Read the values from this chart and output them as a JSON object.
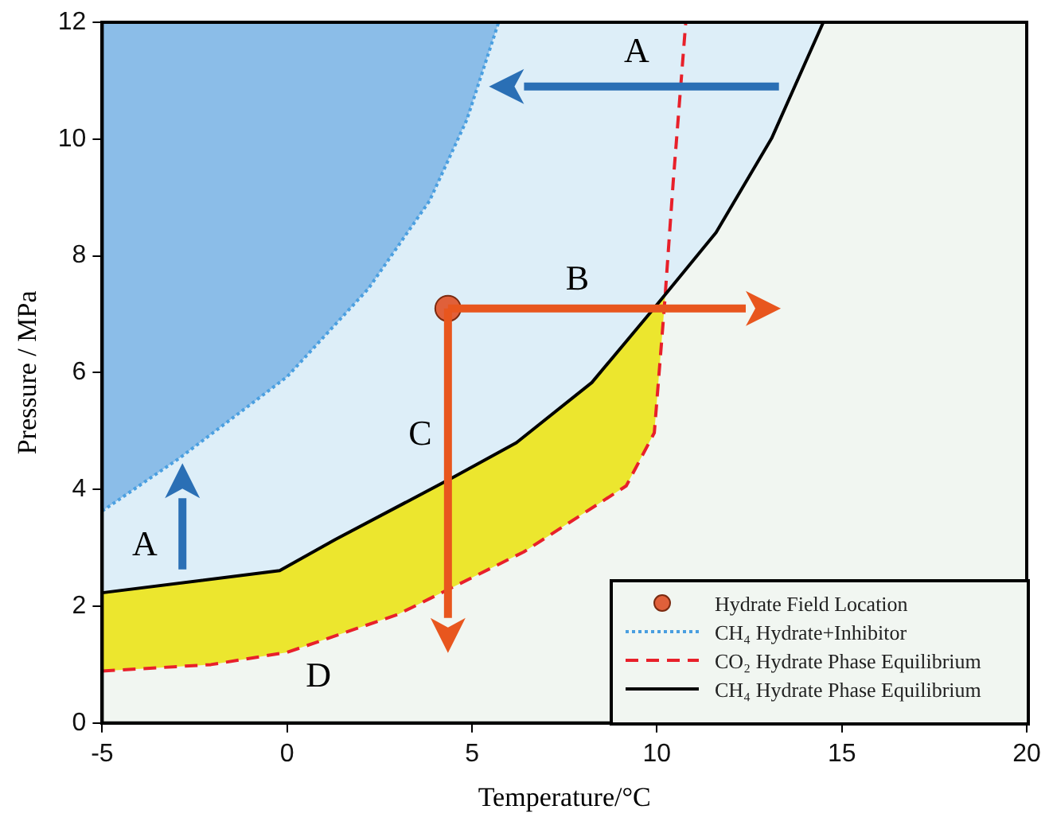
{
  "chart_data": {
    "type": "line",
    "xlabel": "Temperature/°C",
    "ylabel": "Pressure / MPa",
    "xlim": [
      -5,
      20
    ],
    "ylim": [
      0,
      12
    ],
    "xticks": [
      -5,
      0,
      5,
      10,
      15,
      20
    ],
    "yticks": [
      0,
      2,
      4,
      6,
      8,
      10,
      12
    ],
    "grid": false,
    "legend": "bottom right",
    "series": [
      {
        "name": "Hydrate Field Location",
        "type": "scatter",
        "marker": "circle",
        "color": "#e0603a",
        "x": [
          4.35
        ],
        "values": [
          7.1
        ]
      },
      {
        "name": "CH₄ Hydrate+Inhibitor",
        "line_style": "dotted",
        "color": "#4a9fe0",
        "x": [
          -5,
          -2.9,
          0,
          2.2,
          3.85,
          4.86,
          5.72
        ],
        "values": [
          3.63,
          4.54,
          5.93,
          7.44,
          8.94,
          10.33,
          12
        ]
      },
      {
        "name": "CO₂ Hydrate Phase Equilibrium",
        "line_style": "dashed",
        "color": "#e8202a",
        "x": [
          -5,
          -2.06,
          0,
          3.0,
          6.4,
          9.17,
          9.93,
          10.2,
          10.44,
          10.78
        ],
        "values": [
          0.89,
          1.0,
          1.21,
          1.86,
          2.93,
          4.06,
          4.97,
          7.11,
          9.26,
          12
        ]
      },
      {
        "name": "CH₄ Hydrate Phase Equilibrium",
        "line_style": "solid",
        "color": "#000000",
        "x": [
          -5,
          -0.2,
          1.3,
          4.53,
          6.2,
          8.24,
          9.93,
          11.6,
          13.1,
          14.5
        ],
        "values": [
          2.23,
          2.61,
          3.14,
          4.22,
          4.8,
          5.83,
          7.11,
          8.4,
          10.01,
          12
        ]
      }
    ],
    "annotations": [
      "A",
      "A",
      "B",
      "C",
      "D"
    ]
  }
}
